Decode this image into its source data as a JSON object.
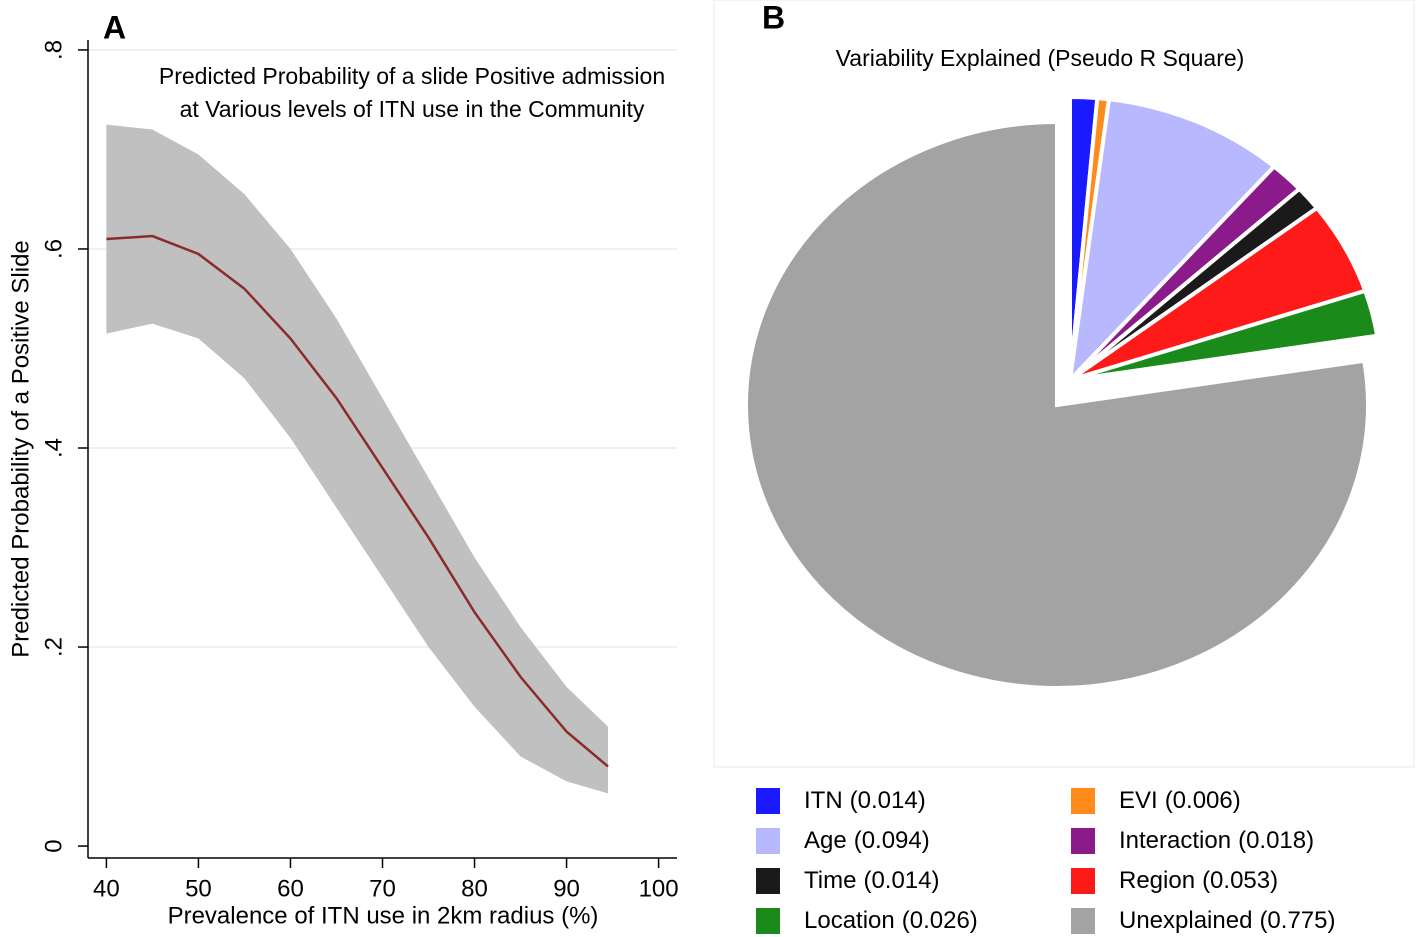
{
  "chart_data": [
    {
      "type": "line",
      "panel": "A",
      "title": "Predicted Probability of a slide Positive admission",
      "subtitle": "at Various levels of ITN use in the Community",
      "xlabel": "Prevalence of ITN use in 2km radius (%)",
      "ylabel": "Predicted Probability of a Positive Slide",
      "x": [
        40,
        45,
        50,
        55,
        60,
        65,
        70,
        75,
        80,
        85,
        90,
        94.5
      ],
      "values": [
        0.61,
        0.613,
        0.595,
        0.56,
        0.51,
        0.45,
        0.38,
        0.31,
        0.235,
        0.17,
        0.115,
        0.08
      ],
      "lower": [
        0.515,
        0.525,
        0.51,
        0.47,
        0.41,
        0.34,
        0.27,
        0.2,
        0.14,
        0.09,
        0.065,
        0.053
      ],
      "upper": [
        0.725,
        0.72,
        0.695,
        0.655,
        0.6,
        0.53,
        0.45,
        0.37,
        0.29,
        0.22,
        0.16,
        0.12
      ],
      "color": "#8b2b2b",
      "band_color": "#c0c0c0",
      "xlim": [
        38,
        102
      ],
      "ylim": [
        -0.012,
        0.81
      ],
      "xticks": [
        40,
        50,
        60,
        70,
        80,
        90,
        100
      ],
      "yticks": [
        0,
        {
          "value": 0.2,
          "label": ".2"
        },
        {
          "value": 0.4,
          "label": ".4"
        },
        {
          "value": 0.6,
          "label": ".6"
        },
        {
          "value": 0.8,
          "label": ".8"
        }
      ],
      "grid": true
    },
    {
      "type": "pie",
      "panel": "B",
      "title": "Variability Explained (Pseudo R Square)",
      "categories": [
        "ITN",
        "EVI",
        "Age",
        "Interaction",
        "Time",
        "Region",
        "Location",
        "Unexplained"
      ],
      "values": [
        0.014,
        0.006,
        0.094,
        0.018,
        0.014,
        0.053,
        0.026,
        0.775
      ],
      "value_labels": [
        "(0.014)",
        "(0.006)",
        "(0.094)",
        "(0.018)",
        "(0.014)",
        "(0.053)",
        "(0.026)",
        "(0.775)"
      ],
      "colors": [
        "#1a1aff",
        "#ff8c1a",
        "#b8b8ff",
        "#8b1a8b",
        "#1a1a1a",
        "#ff1a1a",
        "#1a8b1a",
        "#a3a3a3"
      ]
    }
  ]
}
